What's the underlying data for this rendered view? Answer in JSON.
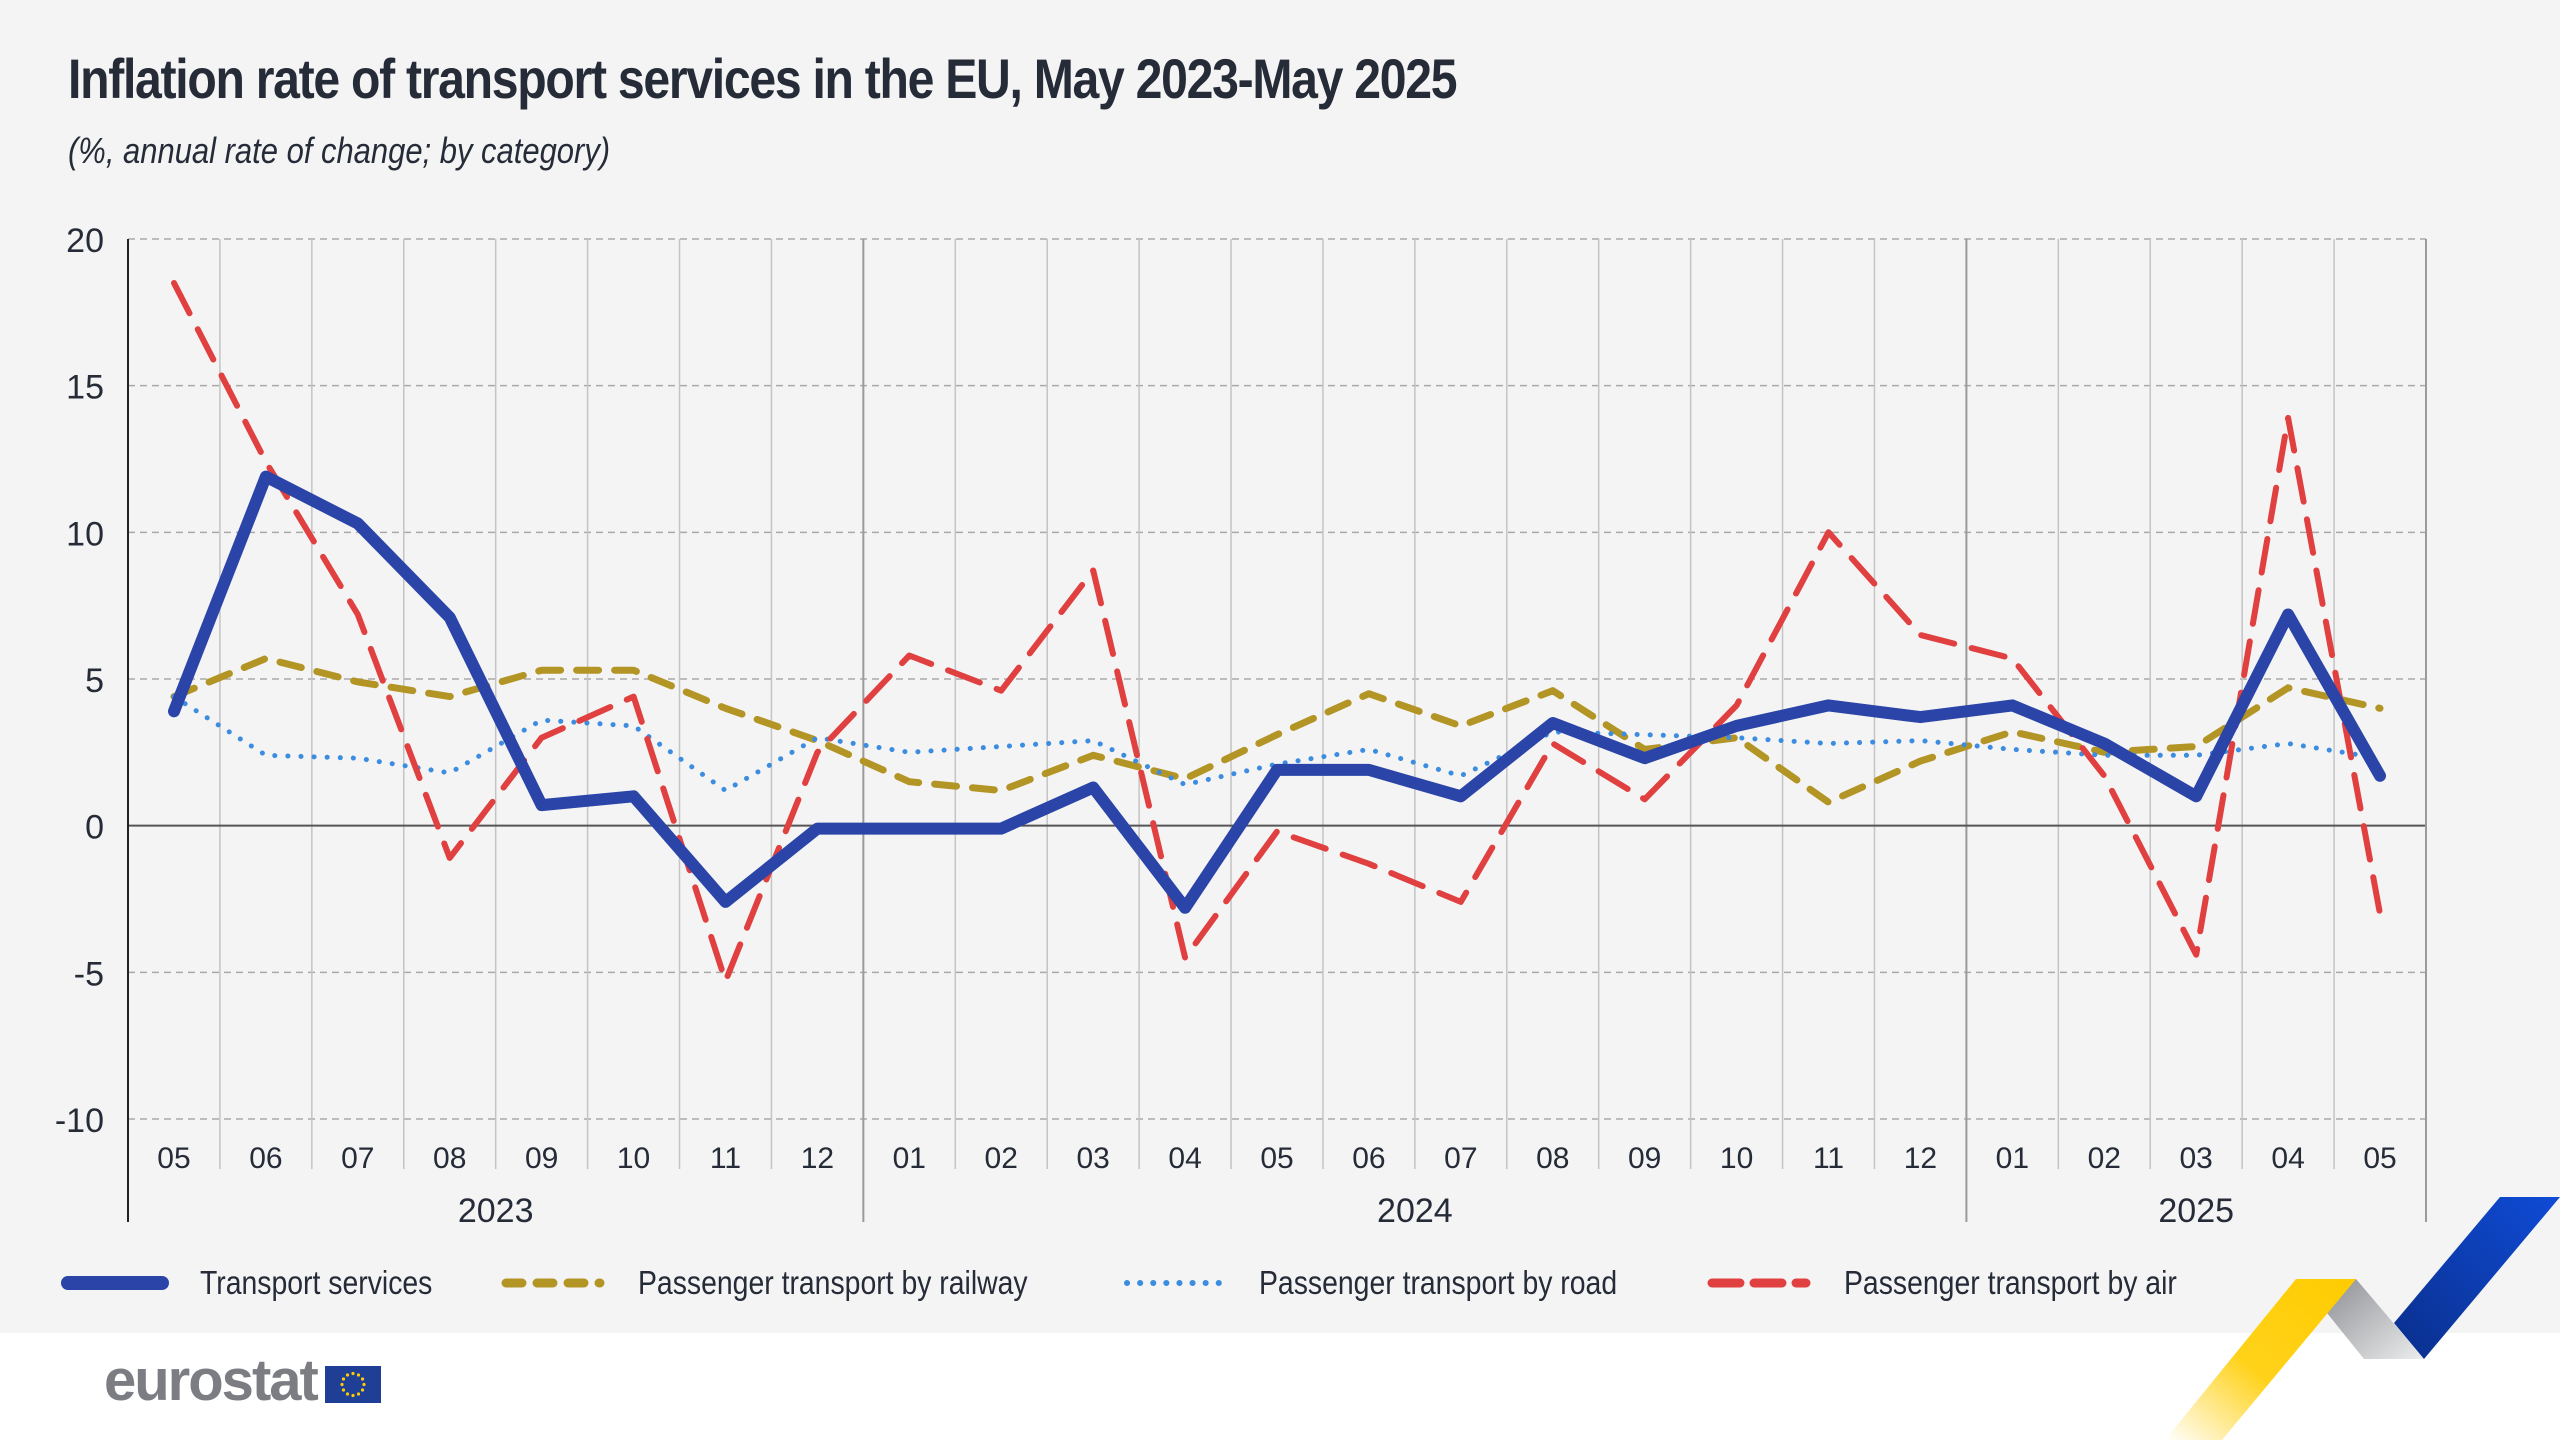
{
  "header": {
    "title": "Inflation rate of transport services in the EU, May 2023-May 2025",
    "subtitle": "(%, annual rate of change; by category)"
  },
  "branding": {
    "logo_text": "eurostat",
    "flag_icon": "eu-flag-icon"
  },
  "colors": {
    "background": "#f4f4f4",
    "transport_services": "#2a44a8",
    "railway": "#b39526",
    "road": "#3c8ce0",
    "air": "#e0403f",
    "swoosh_yellow": "#ffcc00",
    "swoosh_blue": "#0e47cb",
    "swoosh_gray": "#a7a9ad"
  },
  "chart_data": {
    "type": "line",
    "title": "Inflation rate of transport services in the EU, May 2023-May 2025",
    "subtitle": "(%, annual rate of change; by category)",
    "xlabel": "",
    "ylabel": "",
    "ylim": [
      -10,
      20
    ],
    "yticks": [
      20,
      15,
      10,
      5,
      0,
      -5,
      -10
    ],
    "grid": true,
    "legend_position": "bottom",
    "categories": [
      "05",
      "06",
      "07",
      "08",
      "09",
      "10",
      "11",
      "12",
      "01",
      "02",
      "03",
      "04",
      "05",
      "06",
      "07",
      "08",
      "09",
      "10",
      "11",
      "12",
      "01",
      "02",
      "03",
      "04",
      "05"
    ],
    "years": [
      {
        "label": "2023",
        "start": 0,
        "end": 7
      },
      {
        "label": "2024",
        "start": 8,
        "end": 19
      },
      {
        "label": "2025",
        "start": 20,
        "end": 24
      }
    ],
    "series": [
      {
        "name": "Transport services",
        "style": "solid-thick",
        "color": "#2a44a8",
        "values": [
          3.9,
          11.9,
          10.3,
          7.1,
          0.7,
          1.0,
          -2.6,
          -0.1,
          -0.1,
          -0.1,
          1.3,
          -2.8,
          1.9,
          1.9,
          1.0,
          3.5,
          2.3,
          3.4,
          4.1,
          3.7,
          4.1,
          2.8,
          1.0,
          7.2,
          1.7
        ]
      },
      {
        "name": "Passenger transport by railway",
        "style": "dashed",
        "color": "#b39526",
        "values": [
          4.4,
          5.7,
          4.9,
          4.4,
          5.3,
          5.3,
          4.0,
          2.9,
          1.5,
          1.2,
          2.4,
          1.6,
          3.1,
          4.5,
          3.4,
          4.6,
          2.6,
          3.0,
          0.8,
          2.2,
          3.2,
          2.5,
          2.7,
          4.7,
          4.0
        ]
      },
      {
        "name": "Passenger transport by road",
        "style": "dotted",
        "color": "#3c8ce0",
        "values": [
          4.4,
          2.4,
          2.3,
          1.8,
          3.6,
          3.4,
          1.2,
          3.0,
          2.5,
          2.7,
          2.9,
          1.4,
          2.1,
          2.6,
          1.7,
          3.2,
          3.1,
          3.0,
          2.8,
          2.9,
          2.6,
          2.4,
          2.4,
          2.8,
          2.3
        ]
      },
      {
        "name": "Passenger transport by air",
        "style": "long-dashed",
        "color": "#e0403f",
        "values": [
          18.5,
          12.4,
          7.2,
          -1.1,
          3.0,
          4.4,
          -5.3,
          2.5,
          5.8,
          4.6,
          8.7,
          -4.5,
          -0.2,
          -1.3,
          -2.6,
          2.8,
          0.9,
          4.1,
          10.0,
          6.5,
          5.7,
          1.7,
          -4.4,
          13.9,
          -3.0
        ]
      }
    ]
  }
}
